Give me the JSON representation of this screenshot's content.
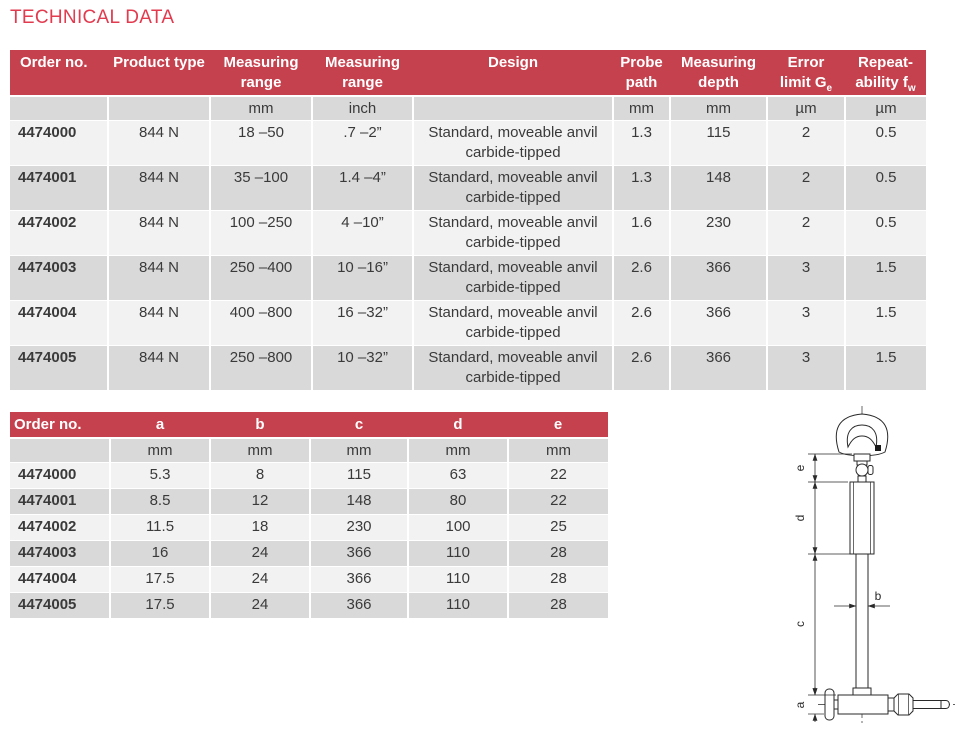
{
  "title": "TECHNICAL DATA",
  "colors": {
    "title_red": "#e23a4f",
    "header_red": "#c5414e",
    "row_light": "#f2f2f2",
    "row_dark": "#d9d9d9"
  },
  "table1": {
    "headers": {
      "order_no": "Order no.",
      "product_type": "Product type",
      "range_mm": "Measuring range",
      "range_inch": "Measuring range",
      "design": "Design",
      "probe_path": "Probe path",
      "measuring_depth": "Measuring depth",
      "error_limit_text": "Error limit G",
      "error_limit_sub": "e",
      "repeatability_text": "Repeat-ability f",
      "repeatability_sub": "w"
    },
    "units": [
      "",
      "",
      "mm",
      "inch",
      "",
      "mm",
      "mm",
      "µm",
      "µm"
    ],
    "rows": [
      [
        "4474000",
        "844 N",
        "18 –50",
        ".7 –2”",
        "Standard, moveable anvil\ncarbide-tipped",
        "1.3",
        "115",
        "2",
        "0.5"
      ],
      [
        "4474001",
        "844 N",
        "35 –100",
        "1.4 –4”",
        "Standard, moveable anvil\ncarbide-tipped",
        "1.3",
        "148",
        "2",
        "0.5"
      ],
      [
        "4474002",
        "844 N",
        "100 –250",
        "4 –10”",
        "Standard, moveable anvil\ncarbide-tipped",
        "1.6",
        "230",
        "2",
        "0.5"
      ],
      [
        "4474003",
        "844 N",
        "250 –400",
        "10 –16”",
        "Standard, moveable anvil\ncarbide-tipped",
        "2.6",
        "366",
        "3",
        "1.5"
      ],
      [
        "4474004",
        "844 N",
        "400 –800",
        "16 –32”",
        "Standard, moveable anvil\ncarbide-tipped",
        "2.6",
        "366",
        "3",
        "1.5"
      ],
      [
        "4474005",
        "844 N",
        "250 –800",
        "10 –32”",
        "Standard, moveable anvil\ncarbide-tipped",
        "2.6",
        "366",
        "3",
        "1.5"
      ]
    ]
  },
  "table2": {
    "headers": [
      "Order no.",
      "a",
      "b",
      "c",
      "d",
      "e"
    ],
    "units": [
      "",
      "mm",
      "mm",
      "mm",
      "mm",
      "mm"
    ],
    "rows": [
      [
        "4474000",
        "5.3",
        "8",
        "115",
        "63",
        "22"
      ],
      [
        "4474001",
        "8.5",
        "12",
        "148",
        "80",
        "22"
      ],
      [
        "4474002",
        "11.5",
        "18",
        "230",
        "100",
        "25"
      ],
      [
        "4474003",
        "16",
        "24",
        "366",
        "110",
        "28"
      ],
      [
        "4474004",
        "17.5",
        "24",
        "366",
        "110",
        "28"
      ],
      [
        "4474005",
        "17.5",
        "24",
        "366",
        "110",
        "28"
      ]
    ]
  },
  "drawing": {
    "labels": {
      "a": "a",
      "b": "b",
      "c": "c",
      "d": "d",
      "e": "e"
    }
  }
}
